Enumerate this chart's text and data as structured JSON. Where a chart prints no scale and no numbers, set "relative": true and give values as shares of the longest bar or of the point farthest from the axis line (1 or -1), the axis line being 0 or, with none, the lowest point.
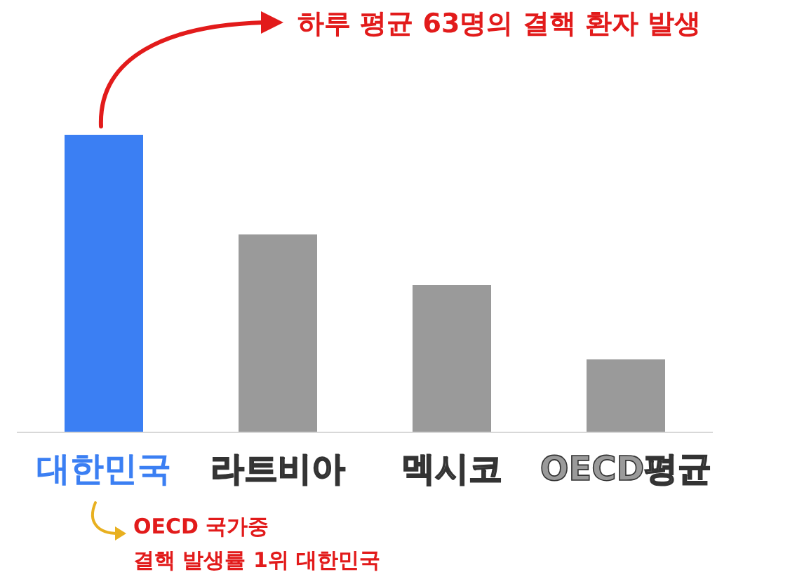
{
  "chart_data": {
    "type": "bar",
    "relative": true,
    "categories": [
      "대한민국",
      "라트비아",
      "멕시코",
      "OECD평균"
    ],
    "values": [
      1,
      0.665,
      0.495,
      0.245
    ],
    "colors": [
      "#3b7ff3",
      "#9a9a9a",
      "#9a9a9a",
      "#9a9a9a"
    ],
    "annotations": [
      "하루 평균 63명의 결핵 환자 발생",
      "OECD 국가중",
      "결핵 발생률 1위 대한민국"
    ]
  }
}
